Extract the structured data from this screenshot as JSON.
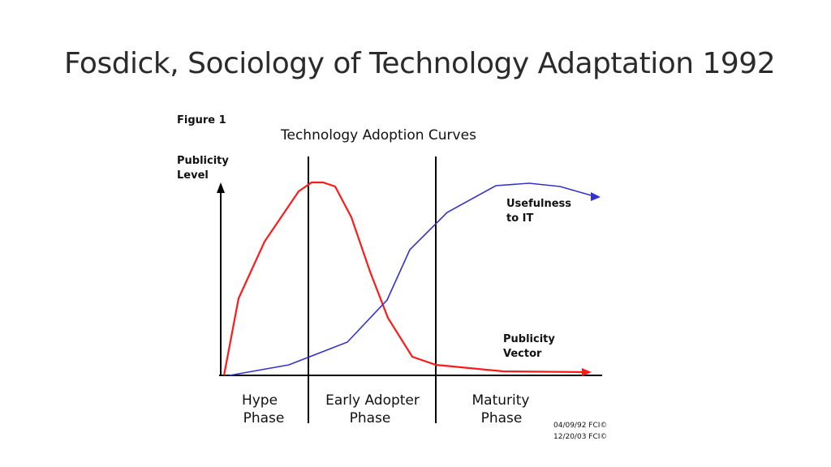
{
  "slide": {
    "title": "Fosdick, Sociology of Technology Adaptation 1992"
  },
  "figure": {
    "label": "Figure 1",
    "title": "Technology Adoption Curves",
    "y_axis_label_line1": "Publicity",
    "y_axis_label_line2": "Level",
    "phases": [
      {
        "line1": "Hype",
        "line2": "Phase"
      },
      {
        "line1": "Early Adopter",
        "line2": "Phase"
      },
      {
        "line1": "Maturity",
        "line2": "Phase"
      }
    ],
    "curves": [
      {
        "label_line1": "Usefulness",
        "label_line2": "to IT",
        "color": "#3333cc"
      },
      {
        "label_line1": "Publicity",
        "label_line2": "Vector",
        "color": "#ff1a1a"
      }
    ],
    "credits": [
      "04/09/92 FCI©",
      "12/20/03 FCI©"
    ]
  }
}
